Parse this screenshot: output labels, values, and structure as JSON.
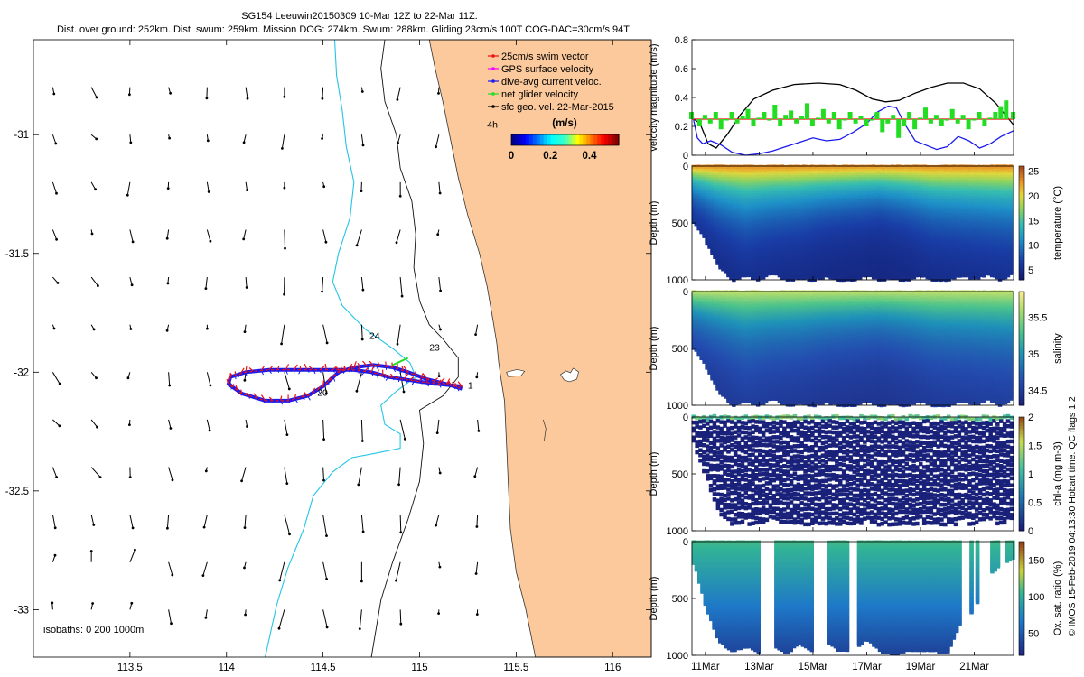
{
  "title": {
    "line1": "SG154 Leeuwin20150309 10-Mar 12Z to 22-Mar 11Z.",
    "line2": "Dist. over ground: 252km. Dist. swum: 259km. Mission DOG: 274km. Swum: 288km. Gliding 23cm/s 100T COG-DAC=30cm/s 94T"
  },
  "credit": "© IMOS 15-Feb-2019 04:13:30 Hobart time. QC flags 1  2",
  "colors": {
    "land": "#fbc99b",
    "isobath": "#111111",
    "isobath_200": "#22c5e6",
    "swim": "#ee1111",
    "dac": "#1a1aee",
    "gps": "#ff00ff",
    "net": "#22dd22",
    "sfc": "#000000"
  },
  "chart_data": [
    {
      "id": "map",
      "type": "map",
      "x_ticks": [
        "113.5",
        "114",
        "114.5",
        "115",
        "115.5",
        "116"
      ],
      "x_tick_values": [
        113.5,
        114,
        114.5,
        115,
        115.5,
        116
      ],
      "y_ticks": [
        "-31",
        "-31.5",
        "-32",
        "-32.5",
        "-33"
      ],
      "y_tick_values": [
        -31,
        -31.5,
        -32,
        -32.5,
        -33
      ],
      "xlim": [
        113.0,
        116.2
      ],
      "ylim": [
        -33.2,
        -30.6
      ],
      "legend": [
        {
          "label": "25cm/s swim vector",
          "color": "#ee1111"
        },
        {
          "label": "GPS surface velocity",
          "color": "#ff00ff"
        },
        {
          "label": "dive-avg current veloc.",
          "color": "#1a1aee"
        },
        {
          "label": "net glider velocity",
          "color": "#22dd22"
        },
        {
          "label": "sfc geo. vel. 22-Mar-2015",
          "color": "#000000"
        }
      ],
      "speed_colorbar": {
        "label": "(m/s)",
        "ticks": [
          "0",
          "0.2",
          "0.4"
        ],
        "tick_values": [
          0,
          0.2,
          0.4
        ],
        "range": [
          0,
          0.55
        ]
      },
      "isobath_label": "isobaths: 0   200  1000m",
      "contour_labels": [
        {
          "text": "4h",
          "lon": 115.35,
          "lat": -30.97
        },
        {
          "text": "24",
          "lon": 114.74,
          "lat": -31.86
        },
        {
          "text": "23",
          "lon": 115.05,
          "lat": -31.91
        },
        {
          "text": "20",
          "lon": 114.47,
          "lat": -32.1
        },
        {
          "text": "1",
          "lon": 115.25,
          "lat": -32.07
        }
      ],
      "track": [
        [
          115.22,
          -32.06
        ],
        [
          115.1,
          -32.05
        ],
        [
          115.0,
          -32.04
        ],
        [
          114.92,
          -32.03
        ],
        [
          114.84,
          -32.02
        ],
        [
          114.75,
          -32.0
        ],
        [
          114.65,
          -31.99
        ],
        [
          114.55,
          -31.99
        ],
        [
          114.45,
          -31.99
        ],
        [
          114.35,
          -31.99
        ],
        [
          114.22,
          -31.99
        ],
        [
          114.1,
          -32.0
        ],
        [
          114.02,
          -32.02
        ],
        [
          114.01,
          -32.05
        ],
        [
          114.08,
          -32.09
        ],
        [
          114.2,
          -32.12
        ],
        [
          114.32,
          -32.12
        ],
        [
          114.42,
          -32.1
        ],
        [
          114.5,
          -32.06
        ],
        [
          114.58,
          -32.0
        ],
        [
          114.66,
          -31.98
        ],
        [
          114.76,
          -31.97
        ],
        [
          114.86,
          -31.98
        ],
        [
          114.94,
          -32.0
        ],
        [
          115.04,
          -32.03
        ],
        [
          115.14,
          -32.05
        ],
        [
          115.22,
          -32.07
        ]
      ]
    },
    {
      "id": "velocity",
      "type": "line",
      "ylabel": "velocity magnitude (m/s)",
      "yticks": [
        "0",
        "0.2",
        "0.4",
        "0.6",
        "0.8"
      ],
      "ytick_values": [
        0,
        0.2,
        0.4,
        0.6,
        0.8
      ],
      "ylim": [
        0,
        0.8
      ],
      "xlim": [
        10.5,
        22.46
      ],
      "series": [
        {
          "name": "sfc geo. vel.",
          "color": "#000000",
          "x": [
            10.5,
            10.8,
            11.1,
            11.4,
            11.8,
            12.3,
            12.8,
            13.5,
            14.3,
            15.2,
            16.0,
            16.6,
            17.2,
            17.7,
            18.2,
            18.8,
            19.4,
            20.0,
            20.6,
            21.2,
            21.8,
            22.46
          ],
          "values": [
            0.26,
            0.22,
            0.08,
            0.05,
            0.14,
            0.28,
            0.39,
            0.45,
            0.49,
            0.5,
            0.49,
            0.45,
            0.39,
            0.37,
            0.38,
            0.43,
            0.47,
            0.5,
            0.5,
            0.46,
            0.36,
            0.21
          ]
        },
        {
          "name": "dive-avg current veloc.",
          "color": "#1a1aee",
          "x": [
            10.5,
            10.7,
            10.9,
            11.2,
            11.6,
            12.0,
            12.5,
            13.0,
            13.5,
            14.0,
            14.5,
            15.0,
            15.5,
            16.0,
            16.5,
            17.0,
            17.4,
            17.8,
            18.1,
            18.4,
            18.8,
            19.2,
            19.6,
            20.0,
            20.4,
            20.8,
            21.2,
            21.6,
            22.0,
            22.46
          ],
          "values": [
            0.3,
            0.12,
            0.08,
            0.1,
            0.07,
            0.02,
            0.0,
            0.01,
            0.03,
            0.06,
            0.09,
            0.12,
            0.1,
            0.11,
            0.16,
            0.22,
            0.3,
            0.34,
            0.33,
            0.22,
            0.1,
            0.07,
            0.04,
            0.06,
            0.13,
            0.1,
            0.05,
            0.08,
            0.13,
            0.17
          ]
        },
        {
          "name": "swim vector",
          "color": "#ee1111",
          "x": [
            10.5,
            22.46
          ],
          "values": [
            0.25,
            0.25
          ]
        },
        {
          "name": "net glider velocity",
          "color": "#22dd22",
          "x": [
            10.5,
            10.8,
            11.0,
            11.2,
            11.4,
            11.6,
            11.8,
            12.0,
            12.2,
            12.4,
            12.6,
            12.8,
            13.0,
            13.2,
            13.4,
            13.6,
            13.8,
            14.0,
            14.2,
            14.4,
            14.6,
            14.8,
            15.0,
            15.2,
            15.4,
            15.6,
            15.8,
            16.0,
            16.2,
            16.4,
            16.6,
            16.8,
            17.0,
            17.2,
            17.4,
            17.6,
            17.8,
            18.0,
            18.2,
            18.4,
            18.6,
            18.8,
            19.0,
            19.2,
            19.4,
            19.6,
            19.8,
            20.0,
            20.2,
            20.4,
            20.6,
            20.8,
            21.0,
            21.2,
            21.4,
            21.6,
            21.8,
            22.0,
            22.2,
            22.46
          ],
          "values": [
            0.3,
            0.2,
            0.28,
            0.22,
            0.3,
            0.18,
            0.25,
            0.3,
            0.22,
            0.27,
            0.32,
            0.2,
            0.26,
            0.3,
            0.24,
            0.35,
            0.2,
            0.28,
            0.31,
            0.22,
            0.27,
            0.36,
            0.2,
            0.26,
            0.32,
            0.22,
            0.3,
            0.18,
            0.25,
            0.3,
            0.22,
            0.27,
            0.2,
            0.24,
            0.3,
            0.16,
            0.22,
            0.28,
            0.12,
            0.2,
            0.3,
            0.18,
            0.26,
            0.33,
            0.22,
            0.28,
            0.2,
            0.24,
            0.32,
            0.22,
            0.28,
            0.18,
            0.25,
            0.3,
            0.2,
            0.26,
            0.3,
            0.34,
            0.38,
            0.3
          ]
        }
      ]
    },
    {
      "id": "temperature",
      "type": "heatmap",
      "ylabel": "Depth (m)",
      "yticks": [
        "0",
        "500",
        "1000"
      ],
      "ytick_values": [
        0,
        500,
        1000
      ],
      "ylim": [
        1000,
        0
      ],
      "colorbar": {
        "label": "temperature (°C)",
        "ticks": [
          "5",
          "10",
          "15",
          "20",
          "25"
        ],
        "tick_values": [
          5,
          10,
          15,
          20,
          25
        ],
        "range": [
          3,
          26
        ]
      },
      "surface_value": 24,
      "deep_value": 4,
      "thermocline_depth": {
        "x": [
          10.5,
          11.5,
          12.5,
          13.5,
          14.5,
          15.5,
          16.5,
          17.5,
          18.5,
          19.5,
          20.5,
          21.5,
          22.46
        ],
        "values": [
          120,
          180,
          220,
          200,
          190,
          170,
          160,
          150,
          170,
          200,
          210,
          220,
          230
        ]
      },
      "max_depth": {
        "x": [
          10.6,
          11.0,
          11.5,
          12.0,
          12.5,
          13.0,
          13.5,
          14.0,
          14.5,
          15.0,
          15.5,
          16.0,
          16.5,
          17.0,
          17.5,
          18.0,
          18.5,
          19.0,
          19.5,
          20.0,
          20.5,
          21.0,
          21.5,
          22.0,
          22.4
        ],
        "values": [
          500,
          650,
          880,
          1000,
          960,
          1000,
          940,
          1000,
          990,
          1000,
          970,
          1000,
          1000,
          960,
          1000,
          990,
          1000,
          960,
          1000,
          1000,
          960,
          990,
          950,
          1000,
          940
        ]
      }
    },
    {
      "id": "salinity",
      "type": "heatmap",
      "ylabel": "Depth (m)",
      "yticks": [
        "0",
        "500",
        "1000"
      ],
      "ytick_values": [
        0,
        500,
        1000
      ],
      "ylim": [
        1000,
        0
      ],
      "colorbar": {
        "label": "salinity",
        "ticks": [
          "34.5",
          "35",
          "35.5"
        ],
        "tick_values": [
          34.5,
          35,
          35.5
        ],
        "range": [
          34.3,
          35.85
        ]
      },
      "surface_value": 35.7,
      "deep_value": 34.4,
      "thermocline_depth": {
        "x": [
          10.5,
          11.5,
          12.5,
          13.5,
          14.5,
          15.5,
          16.5,
          17.5,
          18.5,
          19.5,
          20.5,
          21.5,
          22.46
        ],
        "values": [
          150,
          200,
          250,
          230,
          220,
          200,
          190,
          180,
          200,
          230,
          240,
          250,
          260
        ]
      },
      "max_depth": {
        "x": [
          10.6,
          11.0,
          11.5,
          12.0,
          12.5,
          13.0,
          13.5,
          14.0,
          14.5,
          15.0,
          15.5,
          16.0,
          16.5,
          17.0,
          17.5,
          18.0,
          18.5,
          19.0,
          19.5,
          20.0,
          20.5,
          21.0,
          21.5,
          22.0,
          22.4
        ],
        "values": [
          500,
          650,
          880,
          1000,
          960,
          1000,
          940,
          1000,
          990,
          1000,
          970,
          1000,
          1000,
          960,
          1000,
          990,
          1000,
          960,
          1000,
          1000,
          960,
          990,
          950,
          1000,
          940
        ]
      }
    },
    {
      "id": "chla",
      "type": "scatter",
      "ylabel": "Depth (m)",
      "yticks": [
        "0",
        "500",
        "1000"
      ],
      "ytick_values": [
        0,
        500,
        1000
      ],
      "ylim": [
        1000,
        0
      ],
      "colorbar": {
        "label": "chl-a (mg m-3)",
        "ticks": [
          "0",
          "0.5",
          "1",
          "1.5",
          "2"
        ],
        "tick_values": [
          0,
          0.5,
          1,
          1.5,
          2
        ],
        "range": [
          0,
          2
        ]
      },
      "surface_value": 0.9,
      "deep_value": 0.02,
      "max_depth": {
        "x": [
          10.6,
          11.0,
          11.5,
          12.0,
          12.5,
          13.0,
          13.5,
          14.0,
          14.5,
          15.0,
          15.5,
          16.0,
          16.5,
          17.0,
          17.5,
          18.0,
          18.5,
          19.0,
          19.5,
          20.0,
          20.5,
          21.0,
          21.5,
          22.0,
          22.4
        ],
        "values": [
          250,
          550,
          850,
          960,
          920,
          960,
          900,
          960,
          940,
          960,
          930,
          960,
          950,
          920,
          960,
          940,
          960,
          920,
          960,
          950,
          920,
          940,
          900,
          960,
          900
        ]
      }
    },
    {
      "id": "oxygen",
      "type": "scatter",
      "ylabel": "Depth (m)",
      "yticks": [
        "0",
        "500",
        "1000"
      ],
      "ytick_values": [
        0,
        500,
        1000
      ],
      "ylim": [
        1000,
        0
      ],
      "colorbar": {
        "label": "Ox. sat. ratio (%)",
        "ticks": [
          "50",
          "100",
          "150"
        ],
        "tick_values": [
          50,
          100,
          150
        ],
        "range": [
          20,
          175
        ]
      },
      "surface_value": 100,
      "deep_value": 35,
      "max_depth": {
        "x": [
          10.6,
          11.0,
          11.5,
          12.0,
          12.5,
          13.0,
          13.5,
          14.0,
          14.5,
          15.0,
          15.5,
          16.0,
          16.5,
          17.0,
          17.5,
          18.0,
          18.5,
          19.0,
          19.5,
          20.0,
          20.5,
          21.0,
          21.5,
          22.0,
          22.4
        ],
        "values": [
          200,
          560,
          880,
          960,
          920,
          970,
          900,
          980,
          900,
          960,
          880,
          960,
          950,
          860,
          960,
          990,
          960,
          950,
          960,
          980,
          700,
          600,
          300,
          200,
          150
        ]
      }
    },
    {
      "id": "time_axis",
      "type": "axis",
      "tick_labels": [
        "11Mar",
        "13Mar",
        "15Mar",
        "17Mar",
        "19Mar",
        "21Mar"
      ],
      "tick_values": [
        11,
        13,
        15,
        17,
        19,
        21
      ]
    }
  ]
}
